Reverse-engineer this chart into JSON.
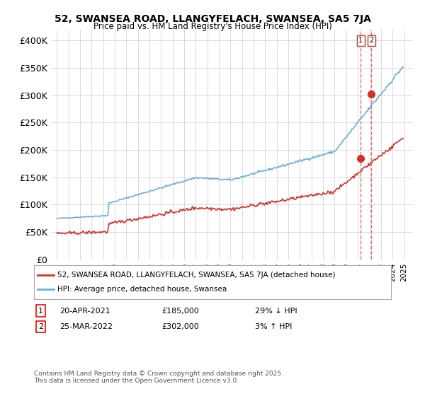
{
  "title": "52, SWANSEA ROAD, LLANGYFELACH, SWANSEA, SA5 7JA",
  "subtitle": "Price paid vs. HM Land Registry's House Price Index (HPI)",
  "legend_line1": "52, SWANSEA ROAD, LLANGYFELACH, SWANSEA, SA5 7JA (detached house)",
  "legend_line2": "HPI: Average price, detached house, Swansea",
  "transaction1_date": "20-APR-2021",
  "transaction1_price": "£185,000",
  "transaction1_hpi": "29% ↓ HPI",
  "transaction2_date": "25-MAR-2022",
  "transaction2_price": "£302,000",
  "transaction2_hpi": "3% ↑ HPI",
  "footer": "Contains HM Land Registry data © Crown copyright and database right 2025.\nThis data is licensed under the Open Government Licence v3.0.",
  "hpi_color": "#6baed6",
  "price_color": "#d73027",
  "vline_color": "#d73027",
  "ylim": [
    0,
    420000
  ],
  "yticks": [
    0,
    50000,
    100000,
    150000,
    200000,
    250000,
    300000,
    350000,
    400000
  ],
  "ylabel_fmt": [
    "£0",
    "£50K",
    "£100K",
    "£150K",
    "£200K",
    "£250K",
    "£300K",
    "£350K",
    "£400K"
  ]
}
